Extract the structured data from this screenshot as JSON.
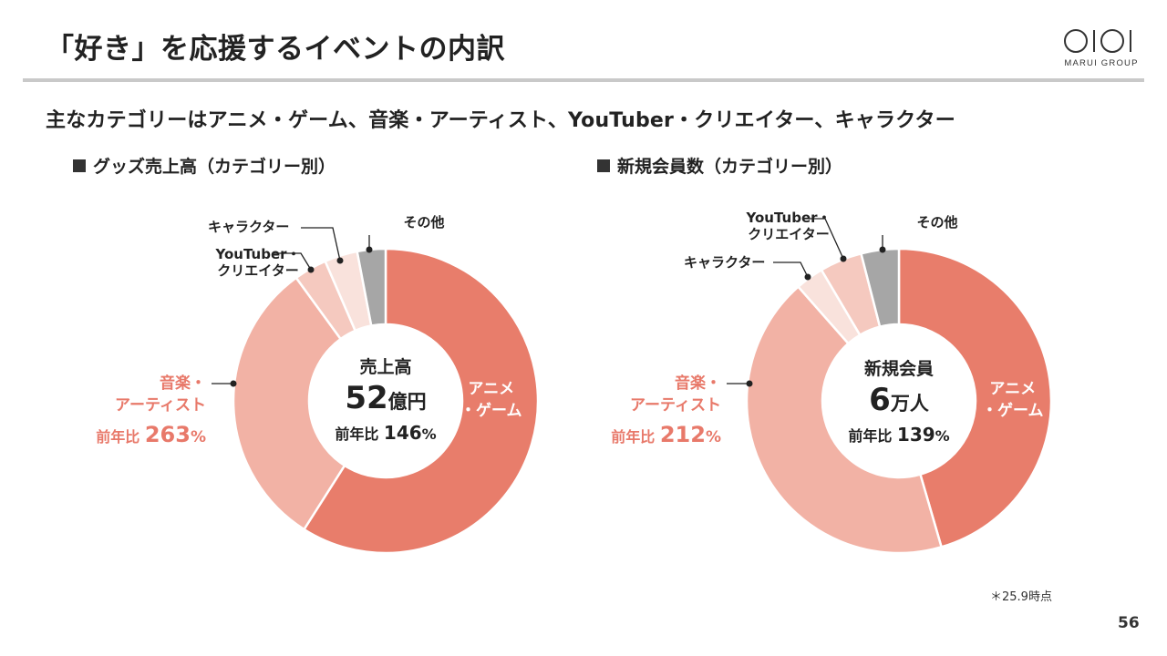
{
  "title": "「好き」を応援するイベントの内訳",
  "logo": {
    "text": "MARUI GROUP"
  },
  "subtitle": "主なカテゴリーはアニメ・ゲーム、音楽・アーティスト、YouTuber・クリエイター、キャラクター",
  "colors": {
    "anime_game": "#e87d6b",
    "music_artist": "#f2b2a5",
    "youtuber_creator": "#f5c9bf",
    "character": "#f9e2dc",
    "other": "#a6a6a6",
    "accent_text": "#e8796a"
  },
  "chart_data": [
    {
      "type": "pie",
      "variant": "donut",
      "title": "グッズ売上高（カテゴリー別）",
      "categories": [
        "アニメ・ゲーム",
        "音楽・アーティスト",
        "YouTuber・クリエイター",
        "キャラクター",
        "その他"
      ],
      "values": [
        59,
        31,
        3.5,
        3.5,
        3
      ],
      "center_label": "売上高",
      "center_value": "52",
      "center_unit": "億円",
      "center_yoy_prefix": "前年比",
      "center_yoy_value": "146",
      "center_yoy_unit": "%",
      "labels": {
        "anime_line1": "アニメ",
        "anime_line2": "・ゲーム",
        "music_line1": "音楽・",
        "music_line2": "アーティスト",
        "music_yoy_prefix": "前年比",
        "music_yoy_value": "263",
        "music_yoy_unit": "%",
        "youtuber_line1": "YouTuber・",
        "youtuber_line2": "クリエイター",
        "character": "キャラクター",
        "other": "その他"
      }
    },
    {
      "type": "pie",
      "variant": "donut",
      "title": "新規会員数（カテゴリー別）",
      "categories": [
        "アニメ・ゲーム",
        "音楽・アーティスト",
        "キャラクター",
        "YouTuber・クリエイター",
        "その他"
      ],
      "values": [
        45.5,
        43,
        3,
        4.5,
        4
      ],
      "center_label": "新規会員",
      "center_value": "6",
      "center_unit": "万人",
      "center_yoy_prefix": "前年比",
      "center_yoy_value": "139",
      "center_yoy_unit": "%",
      "labels": {
        "anime_line1": "アニメ",
        "anime_line2": "・ゲーム",
        "music_line1": "音楽・",
        "music_line2": "アーティスト",
        "music_yoy_prefix": "前年比",
        "music_yoy_value": "212",
        "music_yoy_unit": "%",
        "youtuber_line1": "YouTuber・",
        "youtuber_line2": "クリエイター",
        "character": "キャラクター",
        "other": "その他"
      }
    }
  ],
  "note": "＊25.9時点",
  "page_number": "56"
}
